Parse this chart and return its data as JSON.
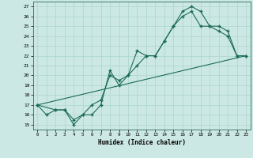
{
  "xlabel": "Humidex (Indice chaleur)",
  "bg_color": "#cce8e4",
  "grid_color": "#b0d8d2",
  "line_color": "#1a6b5a",
  "xlim": [
    -0.5,
    23.5
  ],
  "ylim": [
    14.5,
    27.5
  ],
  "xticks": [
    0,
    1,
    2,
    3,
    4,
    5,
    6,
    7,
    8,
    9,
    10,
    11,
    12,
    13,
    14,
    15,
    16,
    17,
    18,
    19,
    20,
    21,
    22,
    23
  ],
  "yticks": [
    15,
    16,
    17,
    18,
    19,
    20,
    21,
    22,
    23,
    24,
    25,
    26,
    27
  ],
  "line1_x": [
    0,
    1,
    2,
    3,
    4,
    5,
    6,
    7,
    8,
    9,
    10,
    11,
    12,
    13,
    14,
    15,
    16,
    17,
    18,
    19,
    20,
    21,
    22,
    23
  ],
  "line1_y": [
    17,
    16,
    16.5,
    16.5,
    15,
    16,
    16,
    17,
    20.5,
    19,
    20,
    22.5,
    22,
    22,
    23.5,
    25,
    26.5,
    27,
    26.5,
    25,
    24.5,
    24,
    22,
    22
  ],
  "line2_x": [
    0,
    2,
    3,
    4,
    5,
    6,
    7,
    8,
    9,
    10,
    11,
    12,
    13,
    14,
    15,
    16,
    17,
    18,
    19,
    20,
    21,
    22,
    23
  ],
  "line2_y": [
    17,
    16.5,
    16.5,
    15.5,
    16,
    17,
    17.5,
    20,
    19.5,
    20,
    21,
    22,
    22,
    23.5,
    25,
    26,
    26.5,
    25,
    25,
    25,
    24.5,
    22,
    22
  ],
  "line3_x": [
    0,
    23
  ],
  "line3_y": [
    17,
    22
  ]
}
